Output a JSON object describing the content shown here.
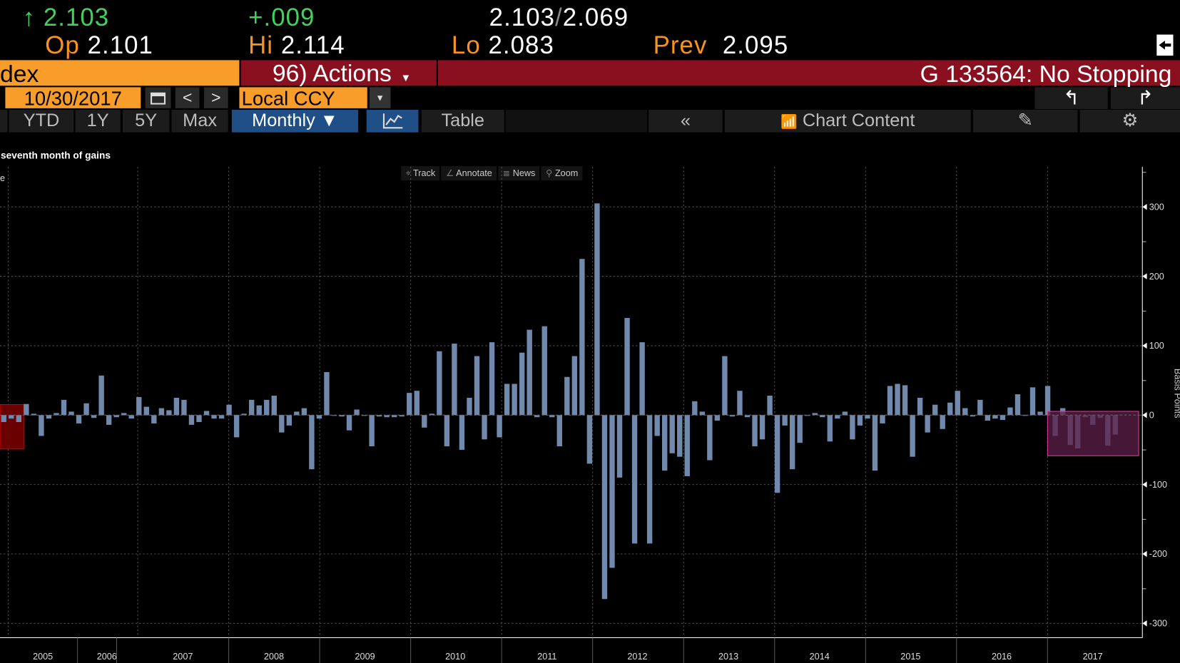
{
  "quote": {
    "arrow": "↑",
    "last": "2.103",
    "change": "+.009",
    "bid": "2.103",
    "ask": "2.069",
    "open_label": "Op",
    "open": "2.101",
    "high_label": "Hi",
    "high": "2.114",
    "low_label": "Lo",
    "low": "2.083",
    "prev_label": "Prev",
    "prev": "2.095"
  },
  "bar": {
    "security": "dex",
    "actions": "96) Actions",
    "alert": "G 133564: No Stopping"
  },
  "controls": {
    "date": "10/30/2017",
    "currency": "Local CCY"
  },
  "ranges": [
    "YTD",
    "1Y",
    "5Y",
    "Max"
  ],
  "period": "Monthly",
  "table_label": "Table",
  "chart_content_label": "Chart Content",
  "chart_tools": [
    "Track",
    "Annotate",
    "News",
    "Zoom"
  ],
  "legend_partial": "e",
  "colors": {
    "bar": "#7189ad",
    "orange": "#f99d2a",
    "red": "#8a1020",
    "blue": "#1f4f86",
    "highlight_old": "#6b0000",
    "highlight_new": "#5e1f48"
  },
  "chart_data": {
    "type": "bar",
    "title": "seventh month of gains",
    "ylabel": "Basis Points",
    "ylim": [
      -300,
      320
    ],
    "yticks": [
      300,
      200,
      100,
      0,
      -100,
      -200,
      -300
    ],
    "grid": true,
    "frequency": "monthly",
    "x_labels": [
      "2005",
      "2006",
      "2007",
      "2008",
      "2009",
      "2010",
      "2011",
      "2012",
      "2013",
      "2014",
      "2015",
      "2016",
      "2017"
    ],
    "values": [
      -10,
      -5,
      -10,
      16,
      2,
      -30,
      -5,
      3,
      22,
      5,
      -12,
      17,
      -4,
      57,
      -14,
      -3,
      3,
      -5,
      26,
      12,
      -12,
      10,
      7,
      25,
      22,
      -14,
      -10,
      6,
      -5,
      -5,
      15,
      -32,
      2,
      22,
      14,
      22,
      28,
      -25,
      -15,
      5,
      10,
      -78,
      -5,
      62,
      0,
      -2,
      -22,
      8,
      0,
      -45,
      -2,
      -3,
      -3,
      -2,
      32,
      35,
      -18,
      2,
      92,
      -45,
      103,
      -50,
      25,
      85,
      -35,
      105,
      -32,
      45,
      45,
      90,
      123,
      -3,
      128,
      -3,
      -45,
      55,
      85,
      225,
      -70,
      305,
      -265,
      -220,
      -90,
      140,
      -185,
      105,
      -185,
      -30,
      -80,
      -55,
      -60,
      -88,
      20,
      5,
      -65,
      -8,
      85,
      -2,
      35,
      -3,
      -45,
      -35,
      28,
      -112,
      -15,
      -78,
      -40,
      0,
      3,
      -3,
      -38,
      -5,
      5,
      -35,
      -15,
      -5,
      -80,
      -12,
      42,
      45,
      43,
      -60,
      25,
      -25,
      15,
      -20,
      18,
      35,
      10,
      -2,
      22,
      -8,
      -5,
      -7,
      11,
      30,
      0,
      40,
      5,
      42,
      -30,
      10,
      -43,
      -48,
      -3,
      -14,
      -4,
      -44,
      -28
    ]
  }
}
